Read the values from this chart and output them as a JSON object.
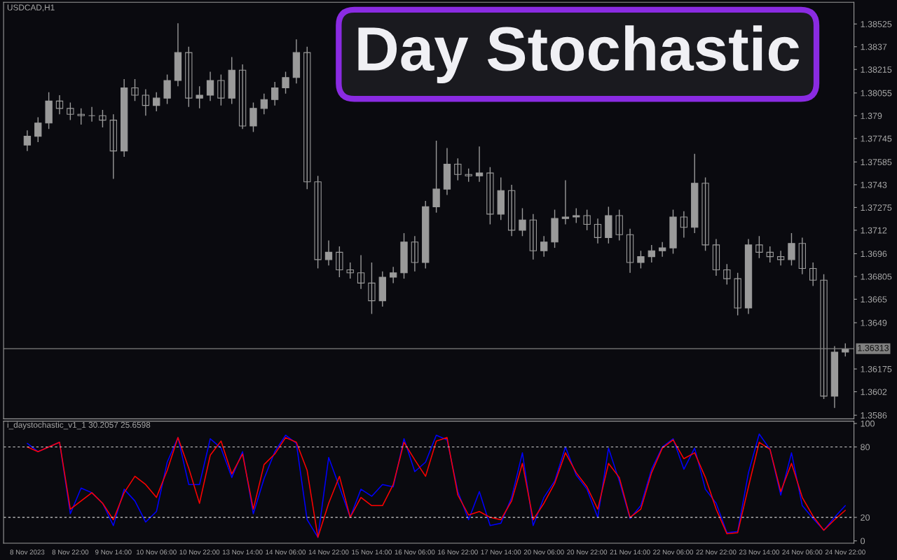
{
  "chart_data": [
    {
      "type": "candlestick",
      "title": "USDCAD,H1",
      "color": "#9a9a9a",
      "tick_labels": "y",
      "annotations": [
        "Day Stochastic"
      ],
      "categories": [
        null,
        null,
        null,
        null,
        null,
        null,
        null,
        null,
        null,
        null,
        null,
        null,
        null,
        null,
        null,
        null,
        null,
        null,
        null,
        null,
        null,
        null,
        null,
        null,
        null,
        null,
        null,
        null,
        null,
        null,
        null,
        null,
        null,
        null,
        null,
        null,
        null,
        null,
        null,
        null,
        null,
        null,
        null,
        null,
        null,
        null,
        null,
        null,
        null,
        null,
        null,
        null,
        null,
        null,
        null,
        null,
        null,
        null,
        null,
        null,
        null,
        null,
        null,
        null,
        null,
        null,
        null,
        null,
        null,
        null,
        null,
        null,
        null,
        null,
        null,
        null,
        null
      ],
      "ylim": [
        1.35835,
        1.38673
      ],
      "yticks": [
        1.38525,
        1.3837,
        1.38215,
        1.38055,
        1.379,
        1.37745,
        1.37585,
        1.3743,
        1.37275,
        1.3712,
        1.3696,
        1.36805,
        1.3665,
        1.3649,
        1.36175,
        1.3602,
        1.3586
      ],
      "ref_lines": [
        {
          "axis": "y",
          "value": 1.36313,
          "label": "1.36313",
          "color": "#808080"
        }
      ],
      "ohlc": [
        [
          1.377,
          1.378,
          1.3766,
          1.3776
        ],
        [
          1.3776,
          1.3789,
          1.3772,
          1.3785
        ],
        [
          1.3785,
          1.3806,
          1.3781,
          1.38
        ],
        [
          1.38,
          1.3804,
          1.3791,
          1.3795
        ],
        [
          1.3795,
          1.3799,
          1.3787,
          1.3791
        ],
        [
          1.3791,
          1.3795,
          1.3784,
          1.379
        ],
        [
          1.379,
          1.3796,
          1.3786,
          1.379
        ],
        [
          1.379,
          1.3794,
          1.3782,
          1.3787
        ],
        [
          1.3787,
          1.3791,
          1.3747,
          1.3766
        ],
        [
          1.3766,
          1.3815,
          1.3762,
          1.3809
        ],
        [
          1.3809,
          1.3815,
          1.38,
          1.3804
        ],
        [
          1.3804,
          1.3808,
          1.379,
          1.3797
        ],
        [
          1.3797,
          1.3806,
          1.3793,
          1.3802
        ],
        [
          1.3802,
          1.3818,
          1.3798,
          1.3814
        ],
        [
          1.3814,
          1.3853,
          1.381,
          1.3833
        ],
        [
          1.3833,
          1.3837,
          1.3796,
          1.3802
        ],
        [
          1.3802,
          1.381,
          1.3795,
          1.3804
        ],
        [
          1.3804,
          1.382,
          1.38,
          1.3814
        ],
        [
          1.3814,
          1.3818,
          1.3797,
          1.3802
        ],
        [
          1.3802,
          1.383,
          1.3798,
          1.3821
        ],
        [
          1.3821,
          1.3825,
          1.3781,
          1.3783
        ],
        [
          1.3783,
          1.3799,
          1.3779,
          1.3795
        ],
        [
          1.3795,
          1.3805,
          1.3791,
          1.3801
        ],
        [
          1.3801,
          1.3813,
          1.3797,
          1.3809
        ],
        [
          1.3809,
          1.382,
          1.3805,
          1.3816
        ],
        [
          1.3816,
          1.3842,
          1.3812,
          1.3833
        ],
        [
          1.3833,
          1.3837,
          1.374,
          1.3745
        ],
        [
          1.3745,
          1.3749,
          1.3686,
          1.3692
        ],
        [
          1.3692,
          1.3705,
          1.3688,
          1.3697
        ],
        [
          1.3697,
          1.3701,
          1.368,
          1.3685
        ],
        [
          1.3685,
          1.369,
          1.3679,
          1.3683
        ],
        [
          1.3683,
          1.3695,
          1.3672,
          1.3676
        ],
        [
          1.3676,
          1.369,
          1.3655,
          1.3664
        ],
        [
          1.3664,
          1.3684,
          1.366,
          1.368
        ],
        [
          1.368,
          1.3687,
          1.3676,
          1.3683
        ],
        [
          1.3683,
          1.371,
          1.3679,
          1.3704
        ],
        [
          1.3704,
          1.3708,
          1.3684,
          1.369
        ],
        [
          1.369,
          1.3732,
          1.3686,
          1.3728
        ],
        [
          1.3728,
          1.3773,
          1.3724,
          1.374
        ],
        [
          1.374,
          1.3768,
          1.3736,
          1.3757
        ],
        [
          1.3757,
          1.3761,
          1.3746,
          1.375
        ],
        [
          1.375,
          1.3754,
          1.3745,
          1.3749
        ],
        [
          1.3749,
          1.3769,
          1.3745,
          1.3751
        ],
        [
          1.3751,
          1.3755,
          1.3716,
          1.3723
        ],
        [
          1.3723,
          1.3748,
          1.3719,
          1.3739
        ],
        [
          1.3739,
          1.3743,
          1.3708,
          1.3712
        ],
        [
          1.3712,
          1.3727,
          1.3708,
          1.3719
        ],
        [
          1.3719,
          1.3723,
          1.3692,
          1.3698
        ],
        [
          1.3698,
          1.3708,
          1.3694,
          1.3704
        ],
        [
          1.3704,
          1.3726,
          1.37,
          1.372
        ],
        [
          1.372,
          1.3746,
          1.3716,
          1.3721
        ],
        [
          1.3721,
          1.3727,
          1.3717,
          1.3722
        ],
        [
          1.3722,
          1.3726,
          1.3712,
          1.3716
        ],
        [
          1.3716,
          1.372,
          1.3703,
          1.3707
        ],
        [
          1.3707,
          1.3728,
          1.3703,
          1.3722
        ],
        [
          1.3722,
          1.3726,
          1.3705,
          1.3709
        ],
        [
          1.3709,
          1.3713,
          1.3683,
          1.369
        ],
        [
          1.369,
          1.3698,
          1.3686,
          1.3694
        ],
        [
          1.3694,
          1.3702,
          1.369,
          1.3698
        ],
        [
          1.3698,
          1.3704,
          1.3694,
          1.37
        ],
        [
          1.37,
          1.3726,
          1.3696,
          1.3721
        ],
        [
          1.3721,
          1.3725,
          1.3707,
          1.3714
        ],
        [
          1.3714,
          1.3764,
          1.371,
          1.3744
        ],
        [
          1.3744,
          1.3748,
          1.3698,
          1.3702
        ],
        [
          1.3702,
          1.3706,
          1.3681,
          1.3685
        ],
        [
          1.3685,
          1.3689,
          1.3675,
          1.3679
        ],
        [
          1.3679,
          1.3683,
          1.3654,
          1.3659
        ],
        [
          1.3659,
          1.3706,
          1.3655,
          1.3702
        ],
        [
          1.3702,
          1.3708,
          1.3693,
          1.3697
        ],
        [
          1.3697,
          1.3701,
          1.369,
          1.3694
        ],
        [
          1.3694,
          1.3698,
          1.3688,
          1.3692
        ],
        [
          1.3692,
          1.371,
          1.3688,
          1.3703
        ],
        [
          1.3703,
          1.3707,
          1.3682,
          1.3686
        ],
        [
          1.3686,
          1.369,
          1.3674,
          1.3678
        ],
        [
          1.3678,
          1.3682,
          1.3597,
          1.3599
        ],
        [
          1.3599,
          1.3633,
          1.3591,
          1.3629
        ],
        [
          1.3629,
          1.3635,
          1.3626,
          1.3631
        ]
      ]
    },
    {
      "type": "line",
      "title": "i_daystochastic_v1_1 30.2057 25.6598",
      "categories": [
        "8 Nov 2023",
        null,
        null,
        null,
        "8 Nov 22:00",
        null,
        null,
        null,
        "9 Nov 14:00",
        null,
        null,
        null,
        "10 Nov 06:00",
        null,
        null,
        null,
        "10 Nov 22:00",
        null,
        null,
        null,
        "13 Nov 14:00",
        null,
        null,
        null,
        "14 Nov 06:00",
        null,
        null,
        null,
        "14 Nov 22:00",
        null,
        null,
        null,
        "15 Nov 14:00",
        null,
        null,
        null,
        "16 Nov 06:00",
        null,
        null,
        null,
        "16 Nov 22:00",
        null,
        null,
        null,
        "17 Nov 14:00",
        null,
        null,
        null,
        "20 Nov 06:00",
        null,
        null,
        null,
        "20 Nov 22:00",
        null,
        null,
        null,
        "21 Nov 14:00",
        null,
        null,
        null,
        "22 Nov 06:00",
        null,
        null,
        null,
        "22 Nov 22:00",
        null,
        null,
        null,
        "23 Nov 14:00",
        null,
        null,
        null,
        "24 Nov 06:00",
        null,
        null,
        null,
        "24 Nov 22:00"
      ],
      "ylim": [
        -2,
        102
      ],
      "yticks": [
        0,
        20,
        80,
        100
      ],
      "ref_lines": [
        {
          "axis": "y",
          "value": 20,
          "color": "#d0d0d0",
          "line_style": "dashed"
        },
        {
          "axis": "y",
          "value": 80,
          "color": "#d0d0d0",
          "line_style": "dashed"
        }
      ],
      "series": [
        {
          "color": "#0000ff",
          "values": [
            83,
            76,
            80,
            84,
            23,
            45,
            41,
            32,
            13,
            44,
            34,
            16,
            25,
            67,
            88,
            48,
            48,
            87,
            79,
            54,
            76,
            23,
            53,
            76,
            90,
            83,
            18,
            3,
            71,
            46,
            20,
            44,
            38,
            48,
            46,
            87,
            59,
            67,
            90,
            86,
            42,
            18,
            42,
            13,
            15,
            37,
            75,
            13,
            37,
            51,
            80,
            56,
            44,
            20,
            79,
            51,
            19,
            30,
            61,
            80,
            87,
            61,
            79,
            44,
            32,
            7,
            8,
            58,
            91,
            78,
            39,
            75,
            30,
            19,
            9,
            20,
            30
          ]
        },
        {
          "color": "#ff0000",
          "values": [
            80,
            76,
            80,
            84,
            27,
            34,
            41,
            32,
            18,
            41,
            55,
            48,
            37,
            60,
            88,
            62,
            32,
            73,
            85,
            57,
            74,
            27,
            65,
            74,
            88,
            84,
            60,
            3,
            32,
            55,
            20,
            37,
            30,
            30,
            48,
            84,
            69,
            55,
            85,
            88,
            39,
            22,
            25,
            20,
            18,
            34,
            66,
            18,
            32,
            49,
            75,
            58,
            46,
            27,
            66,
            54,
            20,
            27,
            58,
            79,
            86,
            70,
            75,
            54,
            27,
            6,
            7,
            46,
            84,
            78,
            42,
            66,
            37,
            21,
            9,
            18,
            26
          ]
        }
      ]
    }
  ]
}
